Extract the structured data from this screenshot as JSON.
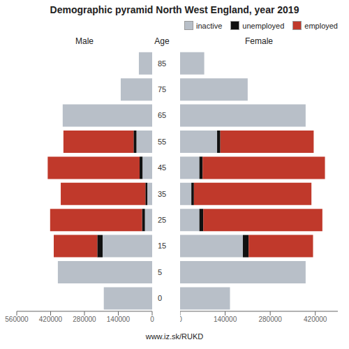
{
  "chart_data": {
    "type": "bar",
    "orientation": "horizontal",
    "stacked": true,
    "title": "Demographic pyramid North West England, year 2019",
    "ylabel": "Age",
    "annotations": [
      "www.iz.sk/RUKD"
    ],
    "legend": "upper right",
    "categories": [
      "0",
      "5",
      "15",
      "25",
      "35",
      "45",
      "55",
      "65",
      "75",
      "85"
    ],
    "panels": [
      {
        "title": "Male",
        "xlim": [
          560000,
          0
        ],
        "xticks": [
          560000,
          420000,
          280000,
          140000,
          0
        ],
        "series": [
          {
            "name": "inactive",
            "color": "#b8bfc8",
            "values": [
              200000,
              390000,
              205000,
              30000,
              20000,
              40000,
              65000,
              370000,
              130000,
              55000
            ]
          },
          {
            "name": "unemployed",
            "color": "#111111",
            "values": [
              0,
              0,
              22000,
              12000,
              8000,
              12000,
              12000,
              0,
              0,
              0
            ]
          },
          {
            "name": "employed",
            "color": "#c0392b",
            "values": [
              0,
              0,
              180000,
              380000,
              350000,
              380000,
              290000,
              0,
              0,
              0
            ]
          }
        ]
      },
      {
        "title": "Female",
        "xlim": [
          0,
          490000
        ],
        "xticks": [
          0,
          140000,
          280000,
          420000
        ],
        "series": [
          {
            "name": "inactive",
            "color": "#b8bfc8",
            "values": [
              155000,
              390000,
              195000,
              60000,
              35000,
              60000,
              115000,
              390000,
              210000,
              75000
            ]
          },
          {
            "name": "unemployed",
            "color": "#111111",
            "values": [
              0,
              0,
              18000,
              12000,
              8000,
              10000,
              10000,
              0,
              0,
              0
            ]
          },
          {
            "name": "employed",
            "color": "#c0392b",
            "values": [
              0,
              0,
              200000,
              370000,
              365000,
              380000,
              290000,
              0,
              0,
              0
            ]
          }
        ]
      }
    ]
  }
}
